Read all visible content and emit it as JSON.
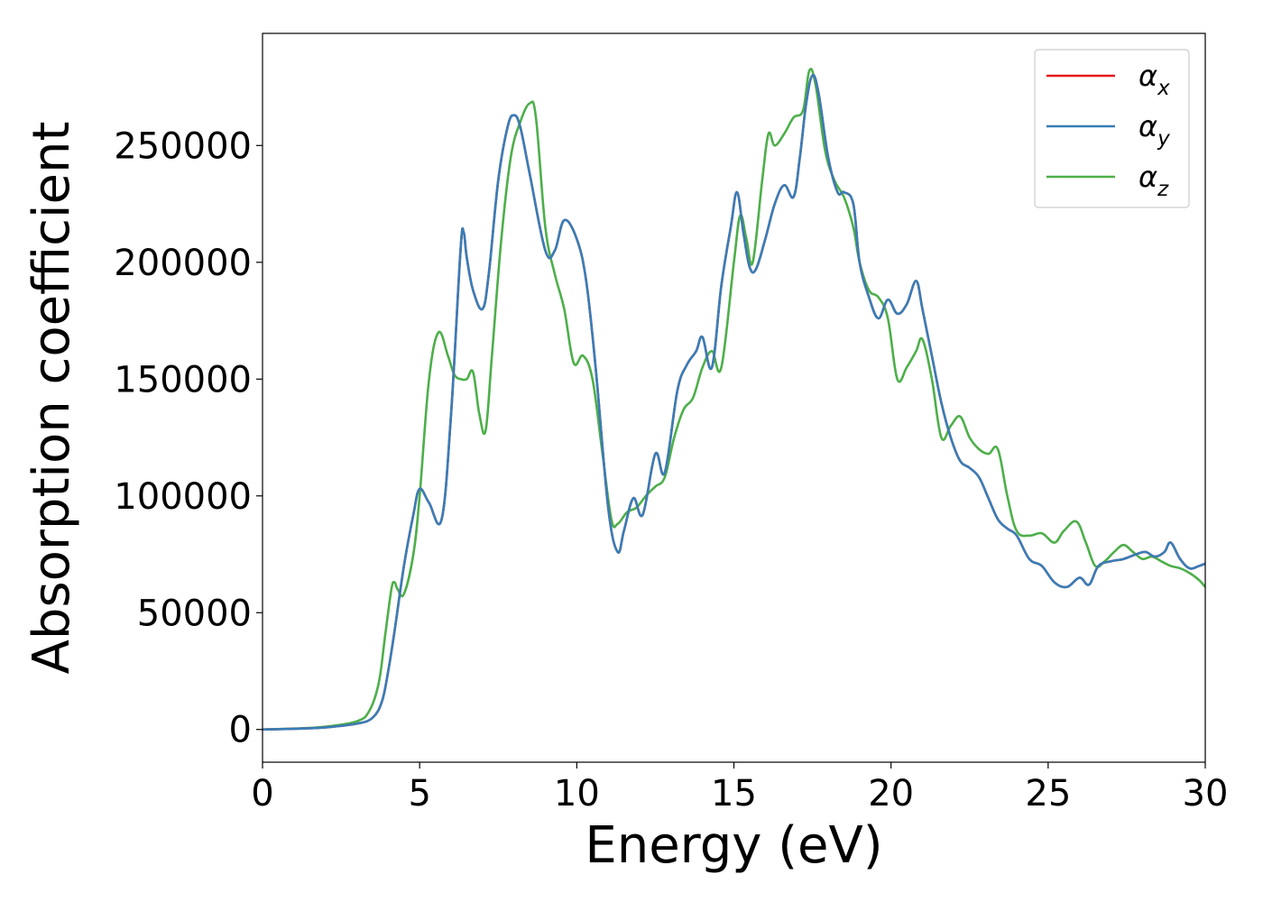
{
  "chart_data": {
    "type": "line",
    "xlabel": "Energy (eV)",
    "ylabel": "Absorption coefficient",
    "xlim": [
      0,
      30
    ],
    "ylim": [
      -14000,
      298000
    ],
    "xticks": [
      0,
      5,
      10,
      15,
      20,
      25,
      30
    ],
    "yticks": [
      0,
      50000,
      100000,
      150000,
      200000,
      250000
    ],
    "grid": false,
    "legend_position": "top-right",
    "series": [
      {
        "name": "α",
        "subscript": "x",
        "color": "#e41a1c",
        "x": [
          0,
          1,
          2,
          3,
          3.5,
          3.8,
          4.0,
          4.2,
          4.5,
          4.8,
          5.0,
          5.3,
          5.7,
          6.0,
          6.3,
          6.4,
          6.5,
          6.7,
          7.0,
          7.2,
          7.5,
          7.8,
          8.0,
          8.2,
          8.5,
          9.0,
          9.3,
          9.6,
          10.0,
          10.3,
          10.6,
          11.0,
          11.3,
          11.5,
          11.8,
          12.1,
          12.5,
          12.8,
          13.2,
          13.5,
          13.8,
          14.0,
          14.3,
          14.6,
          14.9,
          15.1,
          15.3,
          15.5,
          15.7,
          16.0,
          16.3,
          16.6,
          16.9,
          17.1,
          17.3,
          17.5,
          17.7,
          18.0,
          18.3,
          18.5,
          18.8,
          19.0,
          19.3,
          19.6,
          19.9,
          20.2,
          20.5,
          20.8,
          21.0,
          21.3,
          21.6,
          21.9,
          22.2,
          22.5,
          22.8,
          23.1,
          23.4,
          23.7,
          24.0,
          24.4,
          24.8,
          25.2,
          25.6,
          26.0,
          26.3,
          26.6,
          27.0,
          27.4,
          27.8,
          28.1,
          28.4,
          28.7,
          28.9,
          29.2,
          29.5,
          29.8,
          30.0
        ],
        "y": [
          0,
          300,
          900,
          2500,
          5000,
          12000,
          25000,
          42000,
          70000,
          92000,
          103000,
          97000,
          90000,
          135000,
          205000,
          213000,
          202000,
          188000,
          180000,
          195000,
          235000,
          258000,
          263000,
          258000,
          238000,
          205000,
          205000,
          218000,
          210000,
          192000,
          155000,
          95000,
          76000,
          85000,
          99000,
          92000,
          118000,
          110000,
          145000,
          156000,
          162000,
          168000,
          155000,
          190000,
          215000,
          230000,
          213000,
          198000,
          197000,
          210000,
          225000,
          233000,
          228000,
          245000,
          268000,
          280000,
          272000,
          245000,
          230000,
          230000,
          225000,
          200000,
          185000,
          176000,
          184000,
          178000,
          182000,
          192000,
          180000,
          160000,
          140000,
          125000,
          115000,
          112000,
          108000,
          99000,
          90000,
          86000,
          83000,
          73000,
          70000,
          63000,
          61000,
          65000,
          62000,
          70000,
          72000,
          73000,
          75000,
          76000,
          74000,
          76000,
          80000,
          73000,
          69000,
          70000,
          71000
        ]
      },
      {
        "name": "α",
        "subscript": "y",
        "color": "#377eb8",
        "x": [
          0,
          1,
          2,
          3,
          3.5,
          3.8,
          4.0,
          4.2,
          4.5,
          4.8,
          5.0,
          5.3,
          5.7,
          6.0,
          6.3,
          6.4,
          6.5,
          6.7,
          7.0,
          7.2,
          7.5,
          7.8,
          8.0,
          8.2,
          8.5,
          9.0,
          9.3,
          9.6,
          10.0,
          10.3,
          10.6,
          11.0,
          11.3,
          11.5,
          11.8,
          12.1,
          12.5,
          12.8,
          13.2,
          13.5,
          13.8,
          14.0,
          14.3,
          14.6,
          14.9,
          15.1,
          15.3,
          15.5,
          15.7,
          16.0,
          16.3,
          16.6,
          16.9,
          17.1,
          17.3,
          17.5,
          17.7,
          18.0,
          18.3,
          18.5,
          18.8,
          19.0,
          19.3,
          19.6,
          19.9,
          20.2,
          20.5,
          20.8,
          21.0,
          21.3,
          21.6,
          21.9,
          22.2,
          22.5,
          22.8,
          23.1,
          23.4,
          23.7,
          24.0,
          24.4,
          24.8,
          25.2,
          25.6,
          26.0,
          26.3,
          26.6,
          27.0,
          27.4,
          27.8,
          28.1,
          28.4,
          28.7,
          28.9,
          29.2,
          29.5,
          29.8,
          30.0
        ],
        "y": [
          0,
          300,
          900,
          2500,
          5000,
          12000,
          25000,
          42000,
          70000,
          92000,
          103000,
          97000,
          90000,
          135000,
          205000,
          213000,
          202000,
          188000,
          180000,
          195000,
          235000,
          258000,
          263000,
          258000,
          238000,
          205000,
          205000,
          218000,
          210000,
          192000,
          155000,
          95000,
          76000,
          85000,
          99000,
          92000,
          118000,
          110000,
          145000,
          156000,
          162000,
          168000,
          155000,
          190000,
          215000,
          230000,
          213000,
          198000,
          197000,
          210000,
          225000,
          233000,
          228000,
          245000,
          268000,
          280000,
          272000,
          245000,
          230000,
          230000,
          225000,
          200000,
          185000,
          176000,
          184000,
          178000,
          182000,
          192000,
          180000,
          160000,
          140000,
          125000,
          115000,
          112000,
          108000,
          99000,
          90000,
          86000,
          83000,
          73000,
          70000,
          63000,
          61000,
          65000,
          62000,
          70000,
          72000,
          73000,
          75000,
          76000,
          74000,
          76000,
          80000,
          73000,
          69000,
          70000,
          71000
        ]
      },
      {
        "name": "α",
        "subscript": "z",
        "color": "#4daf4a",
        "x": [
          0,
          1,
          2,
          3,
          3.4,
          3.7,
          3.9,
          4.1,
          4.2,
          4.3,
          4.5,
          4.8,
          5.0,
          5.3,
          5.6,
          5.9,
          6.1,
          6.3,
          6.5,
          6.7,
          6.9,
          7.1,
          7.3,
          7.6,
          7.9,
          8.2,
          8.5,
          8.7,
          9.0,
          9.3,
          9.6,
          9.9,
          10.2,
          10.5,
          10.8,
          11.1,
          11.3,
          11.6,
          11.9,
          12.2,
          12.5,
          12.8,
          13.1,
          13.4,
          13.7,
          14.0,
          14.3,
          14.6,
          15.0,
          15.2,
          15.4,
          15.6,
          15.9,
          16.1,
          16.3,
          16.6,
          16.9,
          17.2,
          17.4,
          17.6,
          17.9,
          18.2,
          18.5,
          18.8,
          19.0,
          19.3,
          19.6,
          19.9,
          20.2,
          20.5,
          20.8,
          21.0,
          21.3,
          21.6,
          21.9,
          22.2,
          22.5,
          22.8,
          23.1,
          23.4,
          23.7,
          24.0,
          24.4,
          24.8,
          25.2,
          25.5,
          25.9,
          26.2,
          26.5,
          26.8,
          27.1,
          27.4,
          27.7,
          28.0,
          28.3,
          28.6,
          28.9,
          29.2,
          29.5,
          29.8,
          30.0
        ],
        "y": [
          0,
          400,
          1200,
          3500,
          8000,
          20000,
          40000,
          60000,
          63000,
          60000,
          58000,
          75000,
          100000,
          150000,
          170000,
          160000,
          152000,
          150000,
          150000,
          153000,
          135000,
          128000,
          160000,
          210000,
          245000,
          260000,
          268000,
          262000,
          215000,
          195000,
          180000,
          157000,
          160000,
          150000,
          120000,
          90000,
          88000,
          93000,
          95000,
          100000,
          104000,
          108000,
          125000,
          137000,
          142000,
          155000,
          162000,
          155000,
          200000,
          220000,
          210000,
          200000,
          235000,
          255000,
          250000,
          255000,
          262000,
          265000,
          282000,
          276000,
          248000,
          235000,
          228000,
          215000,
          200000,
          188000,
          185000,
          176000,
          150000,
          155000,
          162000,
          167000,
          150000,
          125000,
          130000,
          134000,
          125000,
          120000,
          118000,
          120000,
          100000,
          85000,
          83000,
          84000,
          80000,
          85000,
          89000,
          80000,
          70000,
          72000,
          76000,
          79000,
          76000,
          73000,
          74000,
          72000,
          70000,
          69000,
          67000,
          64000,
          61000
        ]
      }
    ]
  }
}
